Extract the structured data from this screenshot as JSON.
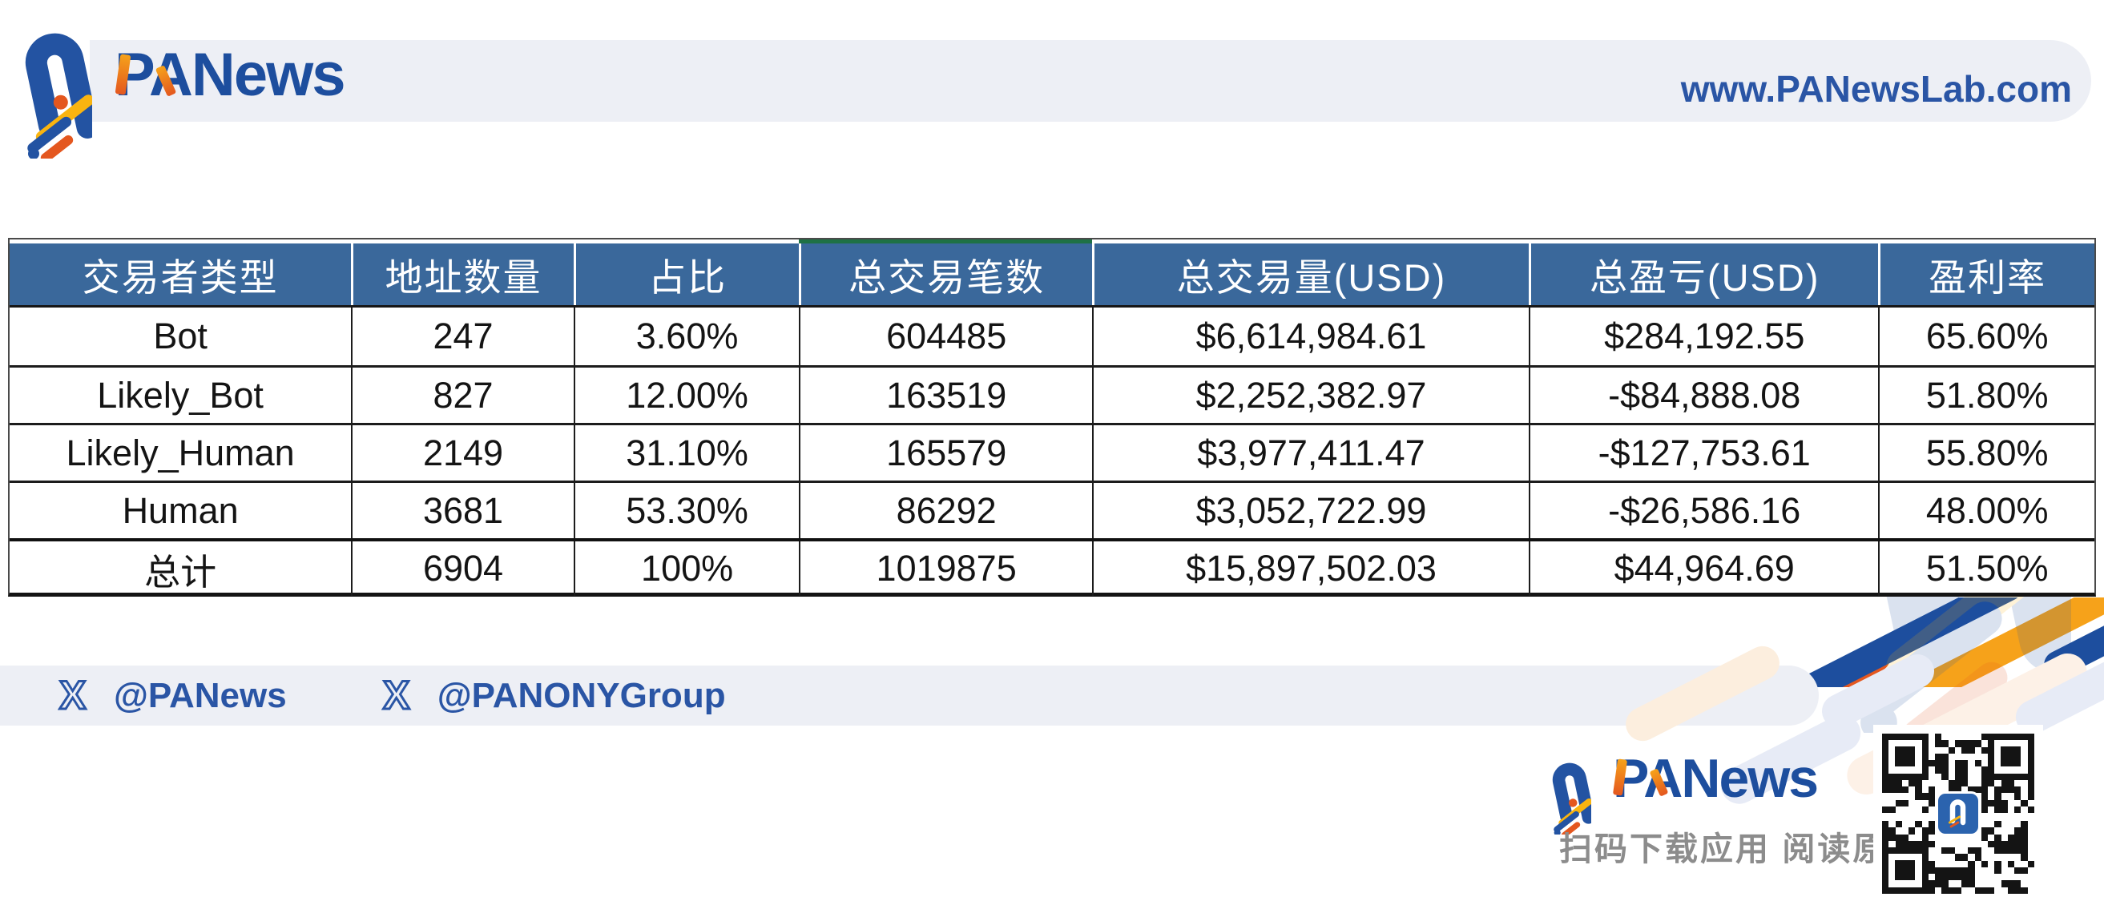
{
  "header": {
    "brand": "PANews",
    "url": "www.PANewsLab.com"
  },
  "watermark": {
    "text": "PANews"
  },
  "chart_data": {
    "type": "table",
    "title": "",
    "columns": [
      "交易者类型",
      "地址数量",
      "占比",
      "总交易笔数",
      "总交易量(USD)",
      "总盈亏(USD)",
      "盈利率"
    ],
    "rows": [
      [
        "Bot",
        "247",
        "3.60%",
        "604485",
        "$6,614,984.61",
        "$284,192.55",
        "65.60%"
      ],
      [
        "Likely_Bot",
        "827",
        "12.00%",
        "163519",
        "$2,252,382.97",
        "-$84,888.08",
        "51.80%"
      ],
      [
        "Likely_Human",
        "2149",
        "31.10%",
        "165579",
        "$3,977,411.47",
        "-$127,753.61",
        "55.80%"
      ],
      [
        "Human",
        "3681",
        "53.30%",
        "86292",
        "$3,052,722.99",
        "-$26,586.16",
        "48.00%"
      ],
      [
        "总计",
        "6904",
        "100%",
        "1019875",
        "$15,897,502.03",
        "$44,964.69",
        "51.50%"
      ]
    ]
  },
  "footer": {
    "twitter_handle_1": "@PANews",
    "twitter_handle_2": "@PANONYGroup",
    "brand": "PANews",
    "caption": "扫码下载应用  阅读原文"
  },
  "colors": {
    "header_row_blue": "#3a689b",
    "brand_blue": "#1d4e9e",
    "link_blue": "#2a55a5",
    "accent_green": "#1e7145",
    "stripe_orange": "#f6a21a",
    "stripe_red_orange": "#e4571f",
    "stripe_yellow": "#f9b410",
    "banner_gray": "#edeff5",
    "caption_gray": "#8c8c8c"
  }
}
